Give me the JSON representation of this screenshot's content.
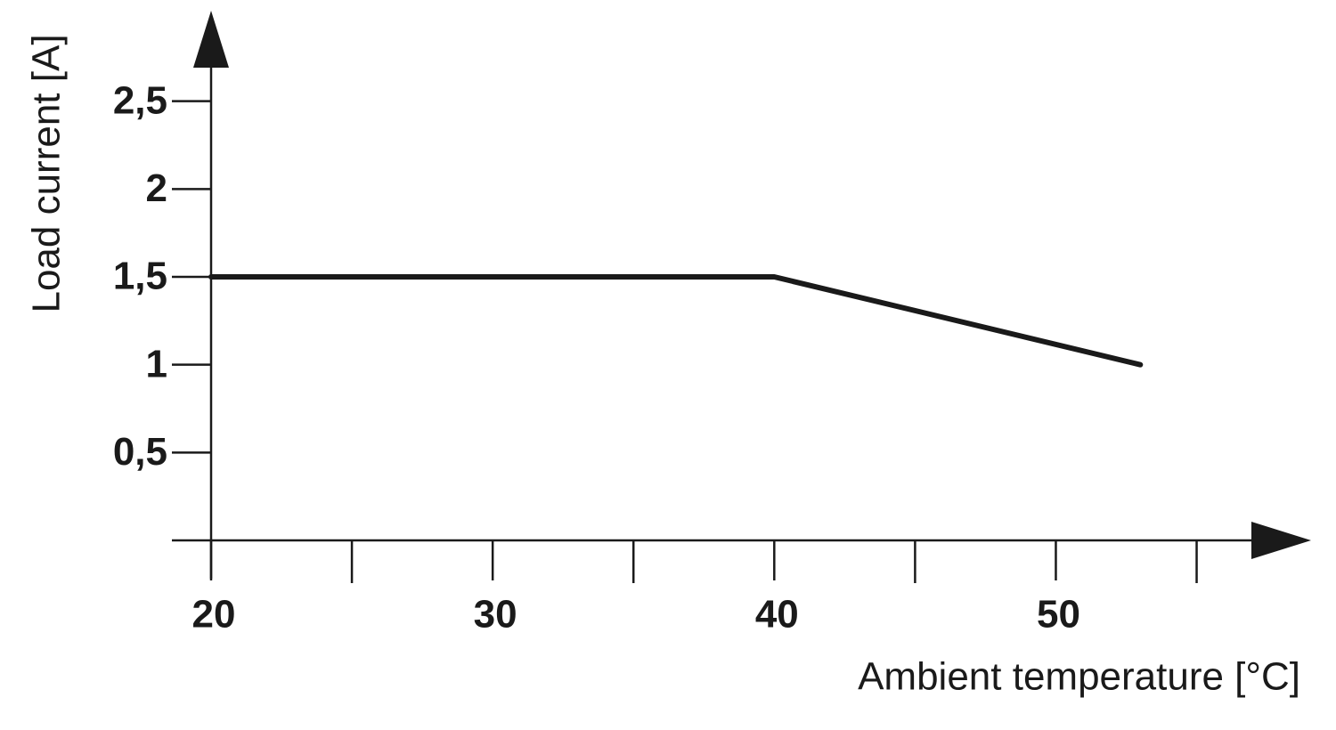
{
  "chart_data": {
    "type": "line",
    "x_label": "Ambient temperature [°C]",
    "y_label": "Load current [A]",
    "x": [
      20,
      40,
      53
    ],
    "values": [
      1.5,
      1.5,
      1.0
    ],
    "color": "#1a1a1a",
    "xlim": [
      20,
      59
    ],
    "xticks": [
      20,
      30,
      40,
      50
    ],
    "xminorticks": [
      25,
      35,
      45,
      55
    ],
    "ylim": [
      0,
      3
    ],
    "yticks": [
      {
        "value": 0.5,
        "label": "0,5"
      },
      1,
      {
        "value": 1.5,
        "label": "1,5"
      },
      2,
      {
        "value": 2.5,
        "label": "2,5"
      }
    ],
    "grid": false
  }
}
